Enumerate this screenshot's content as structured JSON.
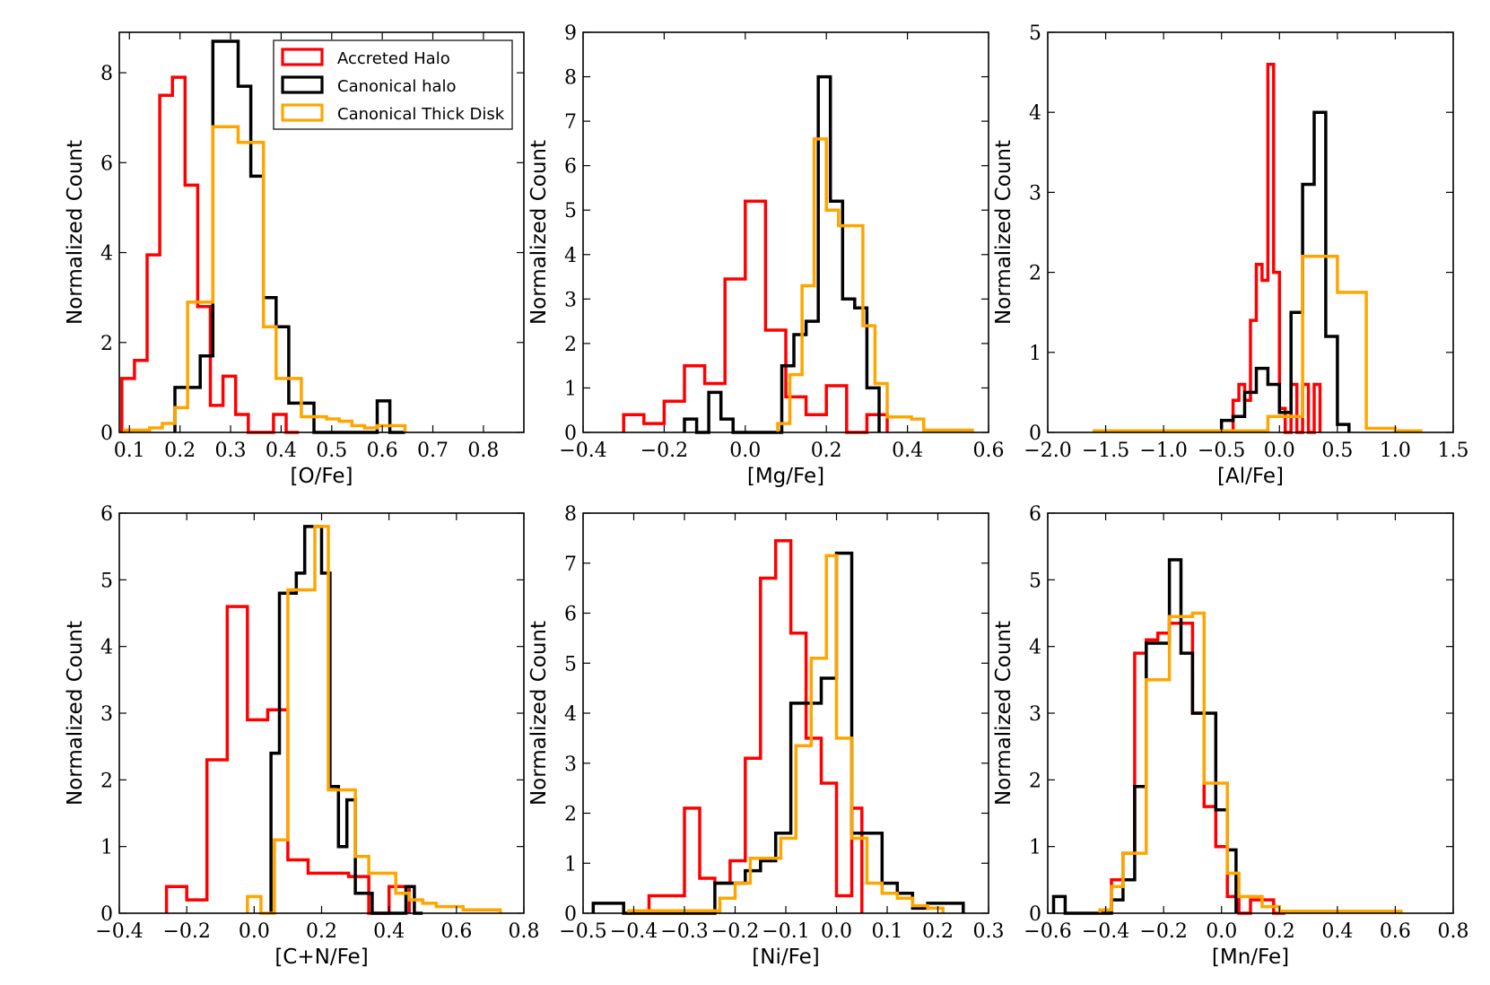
{
  "figure": {
    "legend": [
      "Accreted Halo",
      "Canonical halo",
      "Canonical Thick Disk"
    ],
    "colors": {
      "Accreted Halo": "#ff0000",
      "Canonical halo": "#000000",
      "Canonical Thick Disk": "#ffa500"
    }
  },
  "chart_data": [
    {
      "type": "step",
      "xlabel": "[O/Fe]",
      "ylabel": "Normalized Count",
      "xlim": [
        0.08,
        0.88
      ],
      "ylim": [
        0,
        8.9
      ],
      "xticks": [
        0.1,
        0.2,
        0.3,
        0.4,
        0.5,
        0.6,
        0.7,
        0.8
      ],
      "yticks": [
        0,
        2,
        4,
        6,
        8
      ],
      "legend": "top-right",
      "series": [
        {
          "name": "Accreted Halo",
          "edges": [
            0.085,
            0.11,
            0.135,
            0.16,
            0.185,
            0.21,
            0.235,
            0.26,
            0.285,
            0.31,
            0.335,
            0.36,
            0.385,
            0.41,
            0.435
          ],
          "values": [
            1.2,
            1.6,
            3.95,
            7.5,
            7.9,
            5.5,
            2.8,
            0.6,
            1.25,
            0.4,
            0.0,
            0.0,
            0.4,
            0.0
          ]
        },
        {
          "name": "Canonical halo",
          "edges": [
            0.19,
            0.215,
            0.24,
            0.265,
            0.29,
            0.315,
            0.34,
            0.365,
            0.39,
            0.415,
            0.44,
            0.465,
            0.49,
            0.515,
            0.54,
            0.565,
            0.59,
            0.615,
            0.645
          ],
          "values": [
            1.0,
            1.0,
            1.7,
            8.7,
            8.7,
            7.7,
            5.7,
            3.0,
            2.35,
            0.65,
            0.65,
            0.0,
            0.0,
            0.0,
            0.0,
            0.0,
            0.7,
            0.0
          ]
        },
        {
          "name": "Canonical Thick Disk",
          "edges": [
            0.09,
            0.115,
            0.14,
            0.165,
            0.19,
            0.215,
            0.24,
            0.265,
            0.29,
            0.315,
            0.34,
            0.365,
            0.39,
            0.415,
            0.44,
            0.465,
            0.49,
            0.515,
            0.54,
            0.565,
            0.59,
            0.615,
            0.645
          ],
          "values": [
            0.05,
            0.05,
            0.1,
            0.2,
            0.55,
            2.9,
            2.9,
            6.8,
            6.8,
            6.45,
            6.45,
            2.35,
            1.2,
            1.2,
            0.35,
            0.35,
            0.3,
            0.25,
            0.15,
            0.1,
            0.15,
            0.15
          ]
        }
      ]
    },
    {
      "type": "step",
      "xlabel": "[Mg/Fe]",
      "ylabel": "Normalized Count",
      "xlim": [
        -0.4,
        0.6
      ],
      "ylim": [
        0,
        9
      ],
      "xticks": [
        -0.4,
        -0.2,
        0.0,
        0.2,
        0.4,
        0.6
      ],
      "xtick_labels": [
        "−0.4",
        "−0.2",
        "0.0",
        "0.2",
        "0.4",
        "0.6"
      ],
      "yticks": [
        0,
        1,
        2,
        3,
        4,
        5,
        6,
        7,
        8,
        9
      ],
      "series": [
        {
          "name": "Accreted Halo",
          "edges": [
            -0.3,
            -0.25,
            -0.2,
            -0.15,
            -0.1,
            -0.05,
            0.0,
            0.05,
            0.1,
            0.15,
            0.2,
            0.25,
            0.3,
            0.35
          ],
          "values": [
            0.4,
            0.2,
            0.7,
            1.5,
            1.1,
            3.45,
            5.2,
            2.3,
            0.8,
            0.4,
            1.05,
            0.0,
            0.4
          ]
        },
        {
          "name": "Canonical halo",
          "edges": [
            -0.15,
            -0.12,
            -0.09,
            -0.06,
            -0.03,
            0.0,
            0.03,
            0.06,
            0.09,
            0.12,
            0.15,
            0.18,
            0.21,
            0.24,
            0.27,
            0.3,
            0.33
          ],
          "values": [
            0.3,
            0.0,
            0.9,
            0.3,
            0.0,
            0.0,
            0.0,
            0.0,
            1.5,
            2.2,
            2.5,
            8.0,
            5.2,
            3.0,
            2.8,
            1.0
          ]
        },
        {
          "name": "Canonical Thick Disk",
          "edges": [
            0.08,
            0.11,
            0.14,
            0.17,
            0.2,
            0.23,
            0.26,
            0.29,
            0.32,
            0.35,
            0.38,
            0.41,
            0.44,
            0.47,
            0.5,
            0.53,
            0.56
          ],
          "values": [
            0.2,
            1.3,
            3.3,
            6.6,
            5.0,
            4.65,
            4.65,
            2.4,
            1.1,
            0.35,
            0.35,
            0.3,
            0.05,
            0.05,
            0.05,
            0.05
          ]
        }
      ]
    },
    {
      "type": "step",
      "xlabel": "[Al/Fe]",
      "ylabel": "Normalized Count",
      "xlim": [
        -2.0,
        1.5
      ],
      "ylim": [
        0,
        5
      ],
      "xticks": [
        -2.0,
        -1.5,
        -1.0,
        -0.5,
        0.0,
        0.5,
        1.0,
        1.5
      ],
      "xtick_labels": [
        "−2.0",
        "−1.5",
        "−1.0",
        "−0.5",
        "0.0",
        "0.5",
        "1.0",
        "1.5"
      ],
      "yticks": [
        0,
        1,
        2,
        3,
        4,
        5
      ],
      "series": [
        {
          "name": "Accreted Halo",
          "edges": [
            -0.4,
            -0.35,
            -0.3,
            -0.25,
            -0.2,
            -0.15,
            -0.1,
            -0.05,
            0.0,
            0.05,
            0.1,
            0.15,
            0.2,
            0.25,
            0.3,
            0.35
          ],
          "values": [
            0.4,
            0.6,
            0.4,
            1.4,
            2.1,
            1.9,
            4.6,
            2.0,
            0.3,
            0.0,
            0.6,
            0.0,
            0.6,
            0.0,
            0.6
          ]
        },
        {
          "name": "Canonical halo",
          "edges": [
            -0.5,
            -0.4,
            -0.3,
            -0.2,
            -0.1,
            0.0,
            0.1,
            0.2,
            0.3,
            0.4,
            0.5,
            0.6
          ],
          "values": [
            0.15,
            0.2,
            0.5,
            0.8,
            0.6,
            0.25,
            1.5,
            3.1,
            4.0,
            1.2,
            0.1
          ]
        },
        {
          "name": "Canonical Thick Disk",
          "edges": [
            -1.6,
            -1.3,
            -1.0,
            -0.7,
            -0.4,
            -0.1,
            0.2,
            0.5,
            0.75,
            1.0,
            1.22
          ],
          "values": [
            0.02,
            0.02,
            0.02,
            0.02,
            0.02,
            0.2,
            2.2,
            1.75,
            0.05,
            0.02
          ]
        }
      ]
    },
    {
      "type": "step",
      "xlabel": "[C+N/Fe]",
      "ylabel": "Normalized Count",
      "xlim": [
        -0.4,
        0.8
      ],
      "ylim": [
        0,
        6
      ],
      "xticks": [
        -0.4,
        -0.2,
        0.0,
        0.2,
        0.4,
        0.6,
        0.8
      ],
      "xtick_labels": [
        "−0.4",
        "−0.2",
        "0.0",
        "0.2",
        "0.4",
        "0.6",
        "0.8"
      ],
      "yticks": [
        0,
        1,
        2,
        3,
        4,
        5,
        6
      ],
      "series": [
        {
          "name": "Accreted Halo",
          "edges": [
            -0.26,
            -0.2,
            -0.14,
            -0.08,
            -0.02,
            0.04,
            0.1,
            0.16,
            0.22,
            0.28,
            0.34,
            0.4,
            0.46
          ],
          "values": [
            0.4,
            0.2,
            2.3,
            4.6,
            2.9,
            3.05,
            0.8,
            0.6,
            0.6,
            0.55,
            0.0,
            0.4
          ]
        },
        {
          "name": "Canonical halo",
          "edges": [
            0.05,
            0.075,
            0.1,
            0.125,
            0.15,
            0.175,
            0.2,
            0.225,
            0.25,
            0.275,
            0.3,
            0.325,
            0.35,
            0.375,
            0.4,
            0.425,
            0.45,
            0.475,
            0.5
          ],
          "values": [
            2.4,
            4.8,
            4.8,
            5.1,
            5.8,
            5.8,
            5.1,
            1.9,
            1.0,
            1.7,
            0.3,
            0.3,
            0.0,
            0.0,
            0.0,
            0.0,
            0.4,
            0.0
          ]
        },
        {
          "name": "Canonical Thick Disk",
          "edges": [
            -0.02,
            0.02,
            0.06,
            0.1,
            0.14,
            0.18,
            0.22,
            0.26,
            0.3,
            0.34,
            0.38,
            0.42,
            0.46,
            0.5,
            0.54,
            0.58,
            0.62,
            0.66,
            0.73
          ],
          "values": [
            0.25,
            0.0,
            1.1,
            4.85,
            4.85,
            5.8,
            1.85,
            1.85,
            0.85,
            0.6,
            0.6,
            0.3,
            0.2,
            0.15,
            0.1,
            0.1,
            0.05,
            0.05
          ]
        }
      ]
    },
    {
      "type": "step",
      "xlabel": "[Ni/Fe]",
      "ylabel": "Normalized Count",
      "xlim": [
        -0.5,
        0.3
      ],
      "ylim": [
        0,
        8
      ],
      "xticks": [
        -0.5,
        -0.4,
        -0.3,
        -0.2,
        -0.1,
        0.0,
        0.1,
        0.2,
        0.3
      ],
      "xtick_labels": [
        "−0.5",
        "−0.4",
        "−0.3",
        "−0.2",
        "−0.1",
        "0.0",
        "0.1",
        "0.2",
        "0.3"
      ],
      "yticks": [
        0,
        1,
        2,
        3,
        4,
        5,
        6,
        7,
        8
      ],
      "series": [
        {
          "name": "Accreted Halo",
          "edges": [
            -0.37,
            -0.33,
            -0.3,
            -0.27,
            -0.24,
            -0.21,
            -0.18,
            -0.15,
            -0.12,
            -0.09,
            -0.06,
            -0.03,
            0.0,
            0.03,
            0.05
          ],
          "values": [
            0.35,
            0.35,
            2.1,
            0.7,
            0.6,
            1.05,
            3.1,
            6.7,
            7.45,
            5.6,
            3.5,
            2.6,
            0.35,
            2.1
          ]
        },
        {
          "name": "Canonical halo",
          "edges": [
            -0.48,
            -0.45,
            -0.42,
            -0.39,
            -0.36,
            -0.33,
            -0.3,
            -0.27,
            -0.24,
            -0.21,
            -0.18,
            -0.15,
            -0.12,
            -0.09,
            -0.06,
            -0.03,
            0.0,
            0.03,
            0.06,
            0.09,
            0.12,
            0.15,
            0.18,
            0.21,
            0.25
          ],
          "values": [
            0.2,
            0.2,
            0.0,
            0.0,
            0.0,
            0.0,
            0.0,
            0.0,
            0.6,
            0.6,
            0.85,
            1.05,
            1.6,
            4.2,
            4.2,
            4.7,
            7.2,
            1.6,
            1.6,
            0.6,
            0.4,
            0.1,
            0.2,
            0.2
          ]
        },
        {
          "name": "Canonical Thick Disk",
          "edges": [
            -0.41,
            -0.38,
            -0.35,
            -0.32,
            -0.29,
            -0.26,
            -0.23,
            -0.2,
            -0.17,
            -0.14,
            -0.11,
            -0.08,
            -0.05,
            -0.02,
            0.0,
            0.03,
            0.06,
            0.09,
            0.12,
            0.15,
            0.18,
            0.21
          ],
          "values": [
            0.05,
            0.05,
            0.05,
            0.05,
            0.05,
            0.05,
            0.3,
            0.6,
            1.1,
            1.1,
            1.5,
            3.35,
            5.1,
            7.15,
            3.5,
            1.5,
            0.6,
            0.4,
            0.3,
            0.15,
            0.1
          ]
        }
      ]
    },
    {
      "type": "step",
      "xlabel": "[Mn/Fe]",
      "ylabel": "Normalized Count",
      "xlim": [
        -0.6,
        0.8
      ],
      "ylim": [
        0,
        6
      ],
      "xticks": [
        -0.6,
        -0.4,
        -0.2,
        0.0,
        0.2,
        0.4,
        0.6,
        0.8
      ],
      "xtick_labels": [
        "−0.6",
        "−0.4",
        "−0.2",
        "0.0",
        "0.2",
        "0.4",
        "0.6",
        "0.8"
      ],
      "yticks": [
        0,
        1,
        2,
        3,
        4,
        5,
        6
      ],
      "series": [
        {
          "name": "Accreted Halo",
          "edges": [
            -0.38,
            -0.34,
            -0.3,
            -0.26,
            -0.22,
            -0.18,
            -0.14,
            -0.1,
            -0.06,
            -0.02,
            0.02,
            0.06,
            0.1,
            0.14,
            0.18,
            0.22
          ],
          "values": [
            0.5,
            0.9,
            3.9,
            4.1,
            4.2,
            4.35,
            4.35,
            3.0,
            1.6,
            1.0,
            0.25,
            0.0,
            0.2,
            0.2,
            0.0
          ]
        },
        {
          "name": "Canonical halo",
          "edges": [
            -0.58,
            -0.54,
            -0.5,
            -0.46,
            -0.42,
            -0.38,
            -0.34,
            -0.3,
            -0.26,
            -0.22,
            -0.18,
            -0.14,
            -0.1,
            -0.06,
            -0.02,
            0.02,
            0.05
          ],
          "values": [
            0.25,
            0.0,
            0.0,
            0.0,
            0.0,
            0.2,
            0.5,
            1.9,
            4.05,
            4.05,
            5.3,
            3.9,
            3.0,
            3.0,
            1.55,
            0.95
          ]
        },
        {
          "name": "Canonical Thick Disk",
          "edges": [
            -0.42,
            -0.38,
            -0.34,
            -0.3,
            -0.26,
            -0.22,
            -0.18,
            -0.14,
            -0.1,
            -0.06,
            -0.02,
            0.02,
            0.06,
            0.1,
            0.14,
            0.2,
            0.26,
            0.32,
            0.38,
            0.44,
            0.5,
            0.56,
            0.62
          ],
          "values": [
            0.05,
            0.4,
            0.9,
            0.9,
            3.5,
            3.5,
            4.45,
            4.45,
            4.5,
            1.95,
            1.95,
            0.6,
            0.25,
            0.25,
            0.1,
            0.03,
            0.03,
            0.03,
            0.03,
            0.03,
            0.03,
            0.03
          ]
        }
      ]
    }
  ]
}
